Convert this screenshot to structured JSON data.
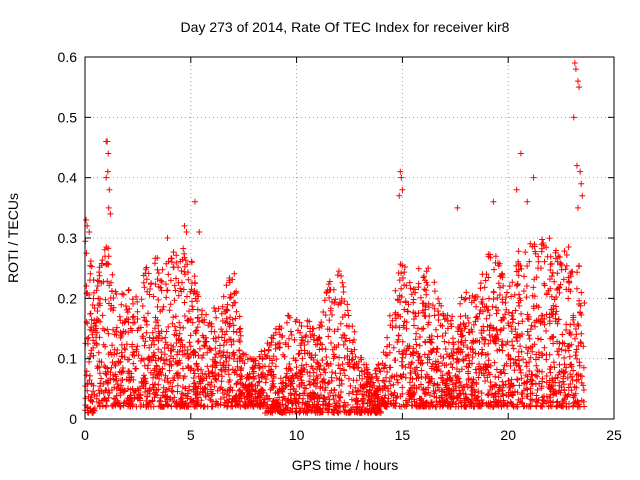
{
  "chart_data": {
    "type": "scatter",
    "title": "Day 273 of 2014, Rate Of TEC Index for receiver kir8",
    "xlabel": "GPS time / hours",
    "ylabel": "ROTI / TECUs",
    "xlim": [
      0,
      25
    ],
    "ylim": [
      0,
      0.6
    ],
    "xticks": [
      0,
      5,
      10,
      15,
      20,
      25
    ],
    "yticks": [
      0,
      0.1,
      0.2,
      0.3,
      0.4,
      0.5,
      0.6
    ],
    "xtick_labels": [
      "0",
      "5",
      "10",
      "15",
      "20",
      "25"
    ],
    "ytick_labels": [
      "0",
      "0.1",
      "0.2",
      "0.3",
      "0.4",
      "0.5",
      "0.6"
    ],
    "grid": true,
    "marker": "+",
    "color": "#ff0000",
    "envelope": {
      "description": "approximate upper envelope of ROTI by hour (data units)",
      "hours": [
        0.0,
        0.5,
        1.0,
        1.5,
        2.0,
        2.5,
        3.0,
        3.5,
        4.0,
        4.5,
        5.0,
        5.5,
        6.0,
        6.5,
        7.0,
        7.5,
        8.0,
        8.5,
        9.0,
        9.5,
        10.0,
        10.5,
        11.0,
        11.5,
        12.0,
        12.5,
        13.0,
        13.5,
        14.0,
        14.5,
        15.0,
        15.5,
        16.0,
        16.5,
        17.0,
        17.5,
        18.0,
        18.5,
        19.0,
        19.5,
        20.0,
        20.5,
        21.0,
        21.5,
        22.0,
        22.5,
        23.0,
        23.5
      ],
      "upper": [
        0.3,
        0.24,
        0.3,
        0.21,
        0.22,
        0.2,
        0.27,
        0.27,
        0.27,
        0.29,
        0.27,
        0.19,
        0.18,
        0.2,
        0.27,
        0.11,
        0.1,
        0.12,
        0.15,
        0.17,
        0.19,
        0.17,
        0.14,
        0.23,
        0.27,
        0.17,
        0.12,
        0.07,
        0.1,
        0.19,
        0.28,
        0.23,
        0.27,
        0.23,
        0.17,
        0.19,
        0.22,
        0.22,
        0.28,
        0.27,
        0.21,
        0.28,
        0.29,
        0.31,
        0.3,
        0.27,
        0.3,
        0.24
      ],
      "lower": [
        0.01,
        0.02,
        0.02,
        0.02,
        0.02,
        0.02,
        0.02,
        0.02,
        0.02,
        0.02,
        0.02,
        0.02,
        0.02,
        0.02,
        0.02,
        0.02,
        0.02,
        0.01,
        0.01,
        0.01,
        0.01,
        0.01,
        0.01,
        0.01,
        0.01,
        0.01,
        0.01,
        0.01,
        0.02,
        0.02,
        0.02,
        0.02,
        0.02,
        0.02,
        0.02,
        0.02,
        0.02,
        0.02,
        0.02,
        0.02,
        0.02,
        0.02,
        0.02,
        0.02,
        0.02,
        0.02,
        0.02,
        0.02
      ]
    },
    "outliers": {
      "x": [
        0.05,
        0.1,
        0.2,
        1.0,
        1.05,
        1.1,
        1.08,
        1.0,
        1.15,
        1.12,
        1.2,
        3.9,
        4.7,
        4.8,
        5.2,
        5.4,
        14.9,
        14.95,
        15.0,
        14.85,
        17.6,
        19.3,
        20.4,
        20.6,
        20.9,
        21.2,
        23.1,
        23.15,
        23.2,
        23.3,
        23.35,
        23.25,
        23.4,
        23.45,
        23.5,
        23.3
      ],
      "y": [
        0.33,
        0.32,
        0.31,
        0.46,
        0.46,
        0.44,
        0.41,
        0.4,
        0.38,
        0.35,
        0.34,
        0.3,
        0.32,
        0.31,
        0.36,
        0.31,
        0.41,
        0.4,
        0.38,
        0.37,
        0.35,
        0.36,
        0.38,
        0.44,
        0.36,
        0.4,
        0.5,
        0.59,
        0.58,
        0.56,
        0.55,
        0.42,
        0.41,
        0.39,
        0.37,
        0.35
      ]
    }
  }
}
